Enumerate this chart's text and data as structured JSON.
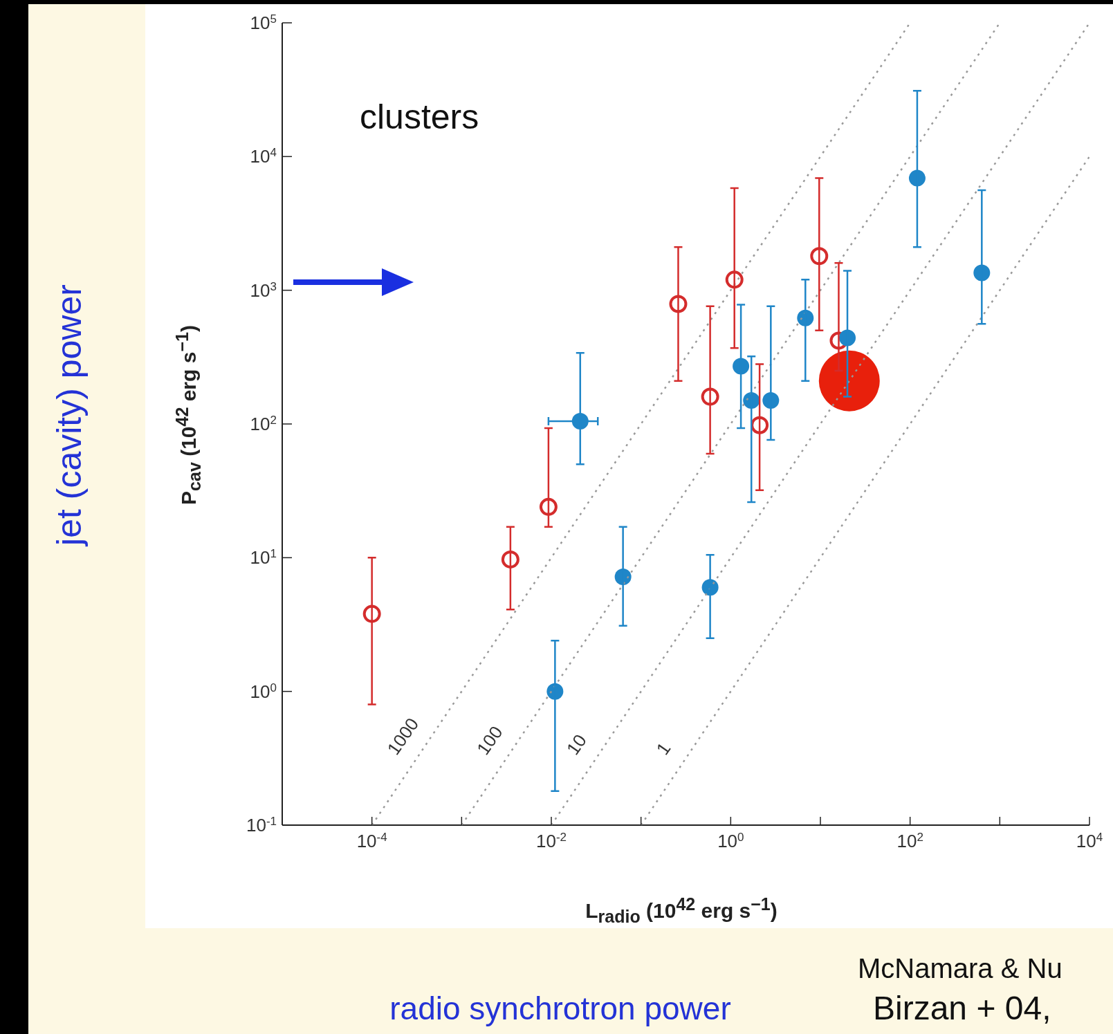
{
  "chart_data": {
    "type": "scatter",
    "xlabel": "L$_{radio}$ (10$^{42}$ erg s$^{−1}$)",
    "ylabel": "P$_{cav}$ (10$^{42}$ erg s$^{−1}$)",
    "log": "xy",
    "xlim": [
      1e-05,
      10000
    ],
    "ylim": [
      0.1,
      100000
    ],
    "xticks": [
      {
        "value": 0.0001,
        "label": "10$^{-4}$"
      },
      {
        "value": 0.001,
        "label": null
      },
      {
        "value": 0.01,
        "label": "10$^{-2}$"
      },
      {
        "value": 0.1,
        "label": null
      },
      {
        "value": 1,
        "label": "10$^{0}$"
      },
      {
        "value": 10,
        "label": null
      },
      {
        "value": 100,
        "label": "10$^{2}$"
      },
      {
        "value": 1000,
        "label": null
      },
      {
        "value": 10000,
        "label": "10$^{4}$"
      }
    ],
    "yticks": [
      {
        "value": 0.1,
        "label": "10$^{-1}$"
      },
      {
        "value": 1,
        "label": "10$^{0}$"
      },
      {
        "value": 10,
        "label": "10$^{1}$"
      },
      {
        "value": 100,
        "label": "10$^{2}$"
      },
      {
        "value": 1000,
        "label": "10$^{3}$"
      },
      {
        "value": 10000,
        "label": "10$^{4}$"
      },
      {
        "value": 100000,
        "label": "10$^{5}$"
      }
    ],
    "series": [
      {
        "color": "#d42c2c",
        "marker": "circle",
        "x": [
          0.0001,
          0.0035,
          0.0093,
          0.26,
          0.59,
          1.1,
          2.1,
          9.7,
          16
        ],
        "values": [
          3.8,
          9.7,
          24,
          790,
          160,
          1200,
          98,
          1800,
          420
        ],
        "errors": [
          [
            0.8,
            10
          ],
          [
            4.1,
            17
          ],
          [
            17,
            93
          ],
          [
            210,
            2100
          ],
          [
            60,
            760
          ],
          [
            370,
            5800
          ],
          [
            32,
            280
          ],
          [
            500,
            6900
          ],
          [
            250,
            1600
          ]
        ]
      },
      {
        "color": "#1f86c8",
        "marker": "circle",
        "x": [
          0.021,
          0.063,
          0.011,
          0.59,
          1.3,
          1.7,
          2.8,
          6.8,
          20,
          120,
          630
        ],
        "values": [
          105,
          7.2,
          1.0,
          6.0,
          270,
          150,
          150,
          620,
          440,
          6900,
          1350
        ],
        "errors": [
          [
            50,
            340
          ],
          [
            3.1,
            17
          ],
          [
            0.18,
            2.4
          ],
          [
            2.5,
            10.5
          ],
          [
            93,
            780
          ],
          [
            26,
            320
          ],
          [
            76,
            760
          ],
          [
            210,
            1200
          ],
          [
            160,
            1400
          ],
          [
            2100,
            31000
          ],
          [
            560,
            5600
          ]
        ],
        "xerrors": [
          [
            0.0093,
            0.033
          ],
          null,
          null,
          null,
          null,
          null,
          null,
          null,
          null,
          null,
          null
        ]
      },
      {
        "color": "#e8200c",
        "marker": "circle",
        "x": [
          21
        ],
        "values": [
          210
        ]
      },
      {
        "type": "line",
        "name": "1000",
        "color": "#999999",
        "line_style": "dotted",
        "marker": "none",
        "x": [
          0.0001,
          100
        ],
        "values": [
          0.1,
          100000
        ]
      },
      {
        "type": "line",
        "name": "100",
        "color": "#999999",
        "line_style": "dotted",
        "marker": "none",
        "x": [
          0.001,
          1000
        ],
        "values": [
          0.1,
          100000
        ]
      },
      {
        "type": "line",
        "name": "10",
        "color": "#999999",
        "line_style": "dotted",
        "marker": "none",
        "x": [
          0.01,
          10000
        ],
        "values": [
          0.1,
          100000
        ]
      },
      {
        "type": "line",
        "name": "1",
        "color": "#999999",
        "line_style": "dotted",
        "marker": "none",
        "x": [
          0.1,
          10000
        ],
        "values": [
          0.1,
          10000
        ]
      }
    ],
    "annotations": [
      "clusters",
      "jet (cavity) power",
      "radio synchrotron power",
      "McNamara & Nu",
      "Birzan + 04,"
    ]
  }
}
